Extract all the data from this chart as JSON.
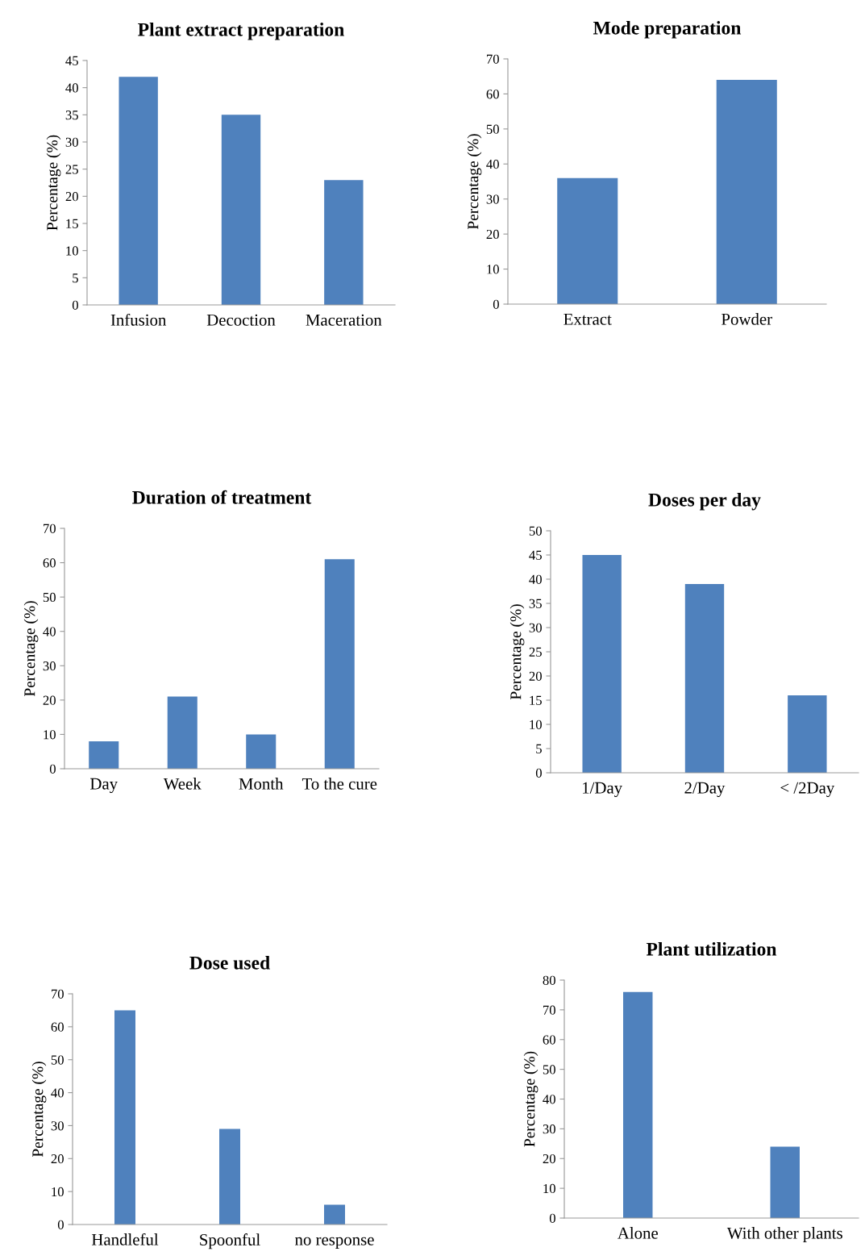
{
  "chart_data": [
    {
      "type": "bar",
      "title": "Plant extract preparation",
      "ylabel": "Percentage (%)",
      "categories": [
        "Infusion",
        "Decoction",
        "Maceration"
      ],
      "values": [
        42,
        35,
        23
      ],
      "color": "#4f81bd",
      "ylim": [
        0,
        45
      ],
      "yticks": [
        0,
        5,
        10,
        15,
        20,
        25,
        30,
        35,
        40,
        45
      ],
      "grid": false,
      "legend": false
    },
    {
      "type": "bar",
      "title": "Mode preparation",
      "ylabel": "Percentage (%)",
      "categories": [
        "Extract",
        "Powder"
      ],
      "values": [
        36,
        64
      ],
      "color": "#4f81bd",
      "ylim": [
        0,
        70
      ],
      "yticks": [
        0,
        10,
        20,
        30,
        40,
        50,
        60,
        70
      ],
      "grid": false,
      "legend": false
    },
    {
      "type": "bar",
      "title": "Duration of treatment",
      "ylabel": "Percentage (%)",
      "categories": [
        "Day",
        "Week",
        "Month",
        "To the cure"
      ],
      "values": [
        8,
        21,
        10,
        61
      ],
      "color": "#4f81bd",
      "ylim": [
        0,
        70
      ],
      "yticks": [
        0,
        10,
        20,
        30,
        40,
        50,
        60,
        70
      ],
      "grid": false,
      "legend": false
    },
    {
      "type": "bar",
      "title": "Doses per day",
      "ylabel": "Percentage (%)",
      "categories": [
        "1/Day",
        "2/Day",
        "< /2Day"
      ],
      "values": [
        45,
        39,
        16
      ],
      "color": "#4f81bd",
      "ylim": [
        0,
        50
      ],
      "yticks": [
        0,
        5,
        10,
        15,
        20,
        25,
        30,
        35,
        40,
        45,
        50
      ],
      "grid": false,
      "legend": false
    },
    {
      "type": "bar",
      "title": "Dose used",
      "ylabel": "Percentage (%)",
      "categories": [
        "Handleful",
        "Spoonful",
        "no response"
      ],
      "values": [
        65,
        29,
        6
      ],
      "color": "#4f81bd",
      "ylim": [
        0,
        70
      ],
      "yticks": [
        0,
        10,
        20,
        30,
        40,
        50,
        60,
        70
      ],
      "grid": false,
      "legend": false
    },
    {
      "type": "bar",
      "title": "Plant utilization",
      "ylabel": "Percentage (%)",
      "categories": [
        "Alone",
        "With other plants"
      ],
      "values": [
        76,
        24
      ],
      "color": "#4f81bd",
      "ylim": [
        0,
        80
      ],
      "yticks": [
        0,
        10,
        20,
        30,
        40,
        50,
        60,
        70,
        80
      ],
      "grid": false,
      "legend": false
    }
  ]
}
